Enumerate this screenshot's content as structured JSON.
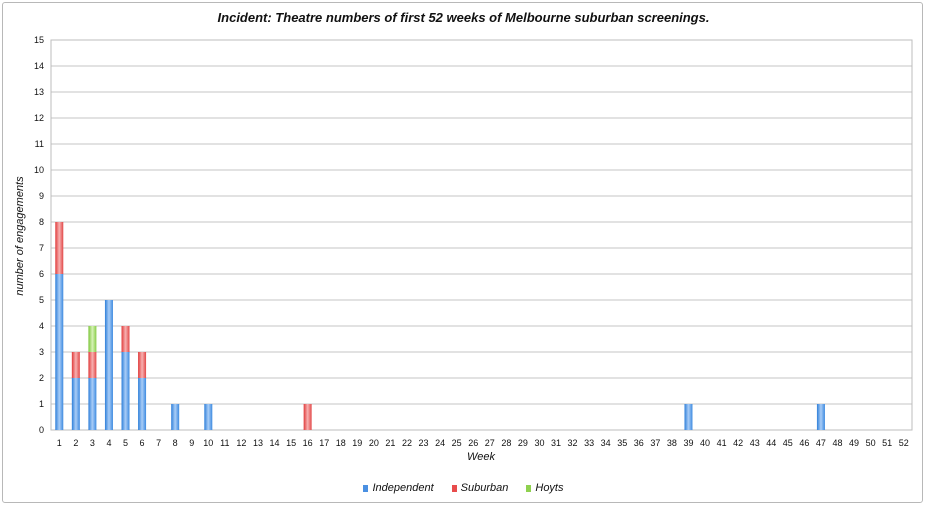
{
  "chart_data": {
    "type": "bar",
    "stacked": true,
    "title": "Incident: Theatre numbers of first 52 weeks of Melbourne suburban screenings.",
    "xlabel": "Week",
    "ylabel": "number of engagements",
    "ylim": [
      0,
      15
    ],
    "yticks": [
      0,
      1,
      2,
      3,
      4,
      5,
      6,
      7,
      8,
      9,
      10,
      11,
      12,
      13,
      14,
      15
    ],
    "grid": true,
    "legend_position": "bottom",
    "categories": [
      "1",
      "2",
      "3",
      "4",
      "5",
      "6",
      "7",
      "8",
      "9",
      "10",
      "11",
      "12",
      "13",
      "14",
      "15",
      "16",
      "17",
      "18",
      "19",
      "20",
      "21",
      "22",
      "23",
      "24",
      "25",
      "26",
      "27",
      "28",
      "29",
      "30",
      "31",
      "32",
      "33",
      "34",
      "35",
      "36",
      "37",
      "38",
      "39",
      "40",
      "41",
      "42",
      "43",
      "44",
      "45",
      "46",
      "47",
      "48",
      "49",
      "50",
      "51",
      "52"
    ],
    "series": [
      {
        "name": "Independent",
        "color": "#4a90e2",
        "values": [
          6,
          2,
          2,
          5,
          3,
          2,
          0,
          1,
          0,
          1,
          0,
          0,
          0,
          0,
          0,
          0,
          0,
          0,
          0,
          0,
          0,
          0,
          0,
          0,
          0,
          0,
          0,
          0,
          0,
          0,
          0,
          0,
          0,
          0,
          0,
          0,
          0,
          0,
          1,
          0,
          0,
          0,
          0,
          0,
          0,
          0,
          1,
          0,
          0,
          0,
          0,
          0
        ]
      },
      {
        "name": "Suburban",
        "color": "#e84c4c",
        "values": [
          2,
          1,
          1,
          0,
          1,
          1,
          0,
          0,
          0,
          0,
          0,
          0,
          0,
          0,
          0,
          1,
          0,
          0,
          0,
          0,
          0,
          0,
          0,
          0,
          0,
          0,
          0,
          0,
          0,
          0,
          0,
          0,
          0,
          0,
          0,
          0,
          0,
          0,
          0,
          0,
          0,
          0,
          0,
          0,
          0,
          0,
          0,
          0,
          0,
          0,
          0,
          0
        ]
      },
      {
        "name": "Hoyts",
        "color": "#8fd14f",
        "values": [
          0,
          0,
          1,
          0,
          0,
          0,
          0,
          0,
          0,
          0,
          0,
          0,
          0,
          0,
          0,
          0,
          0,
          0,
          0,
          0,
          0,
          0,
          0,
          0,
          0,
          0,
          0,
          0,
          0,
          0,
          0,
          0,
          0,
          0,
          0,
          0,
          0,
          0,
          0,
          0,
          0,
          0,
          0,
          0,
          0,
          0,
          0,
          0,
          0,
          0,
          0,
          0
        ]
      }
    ]
  }
}
